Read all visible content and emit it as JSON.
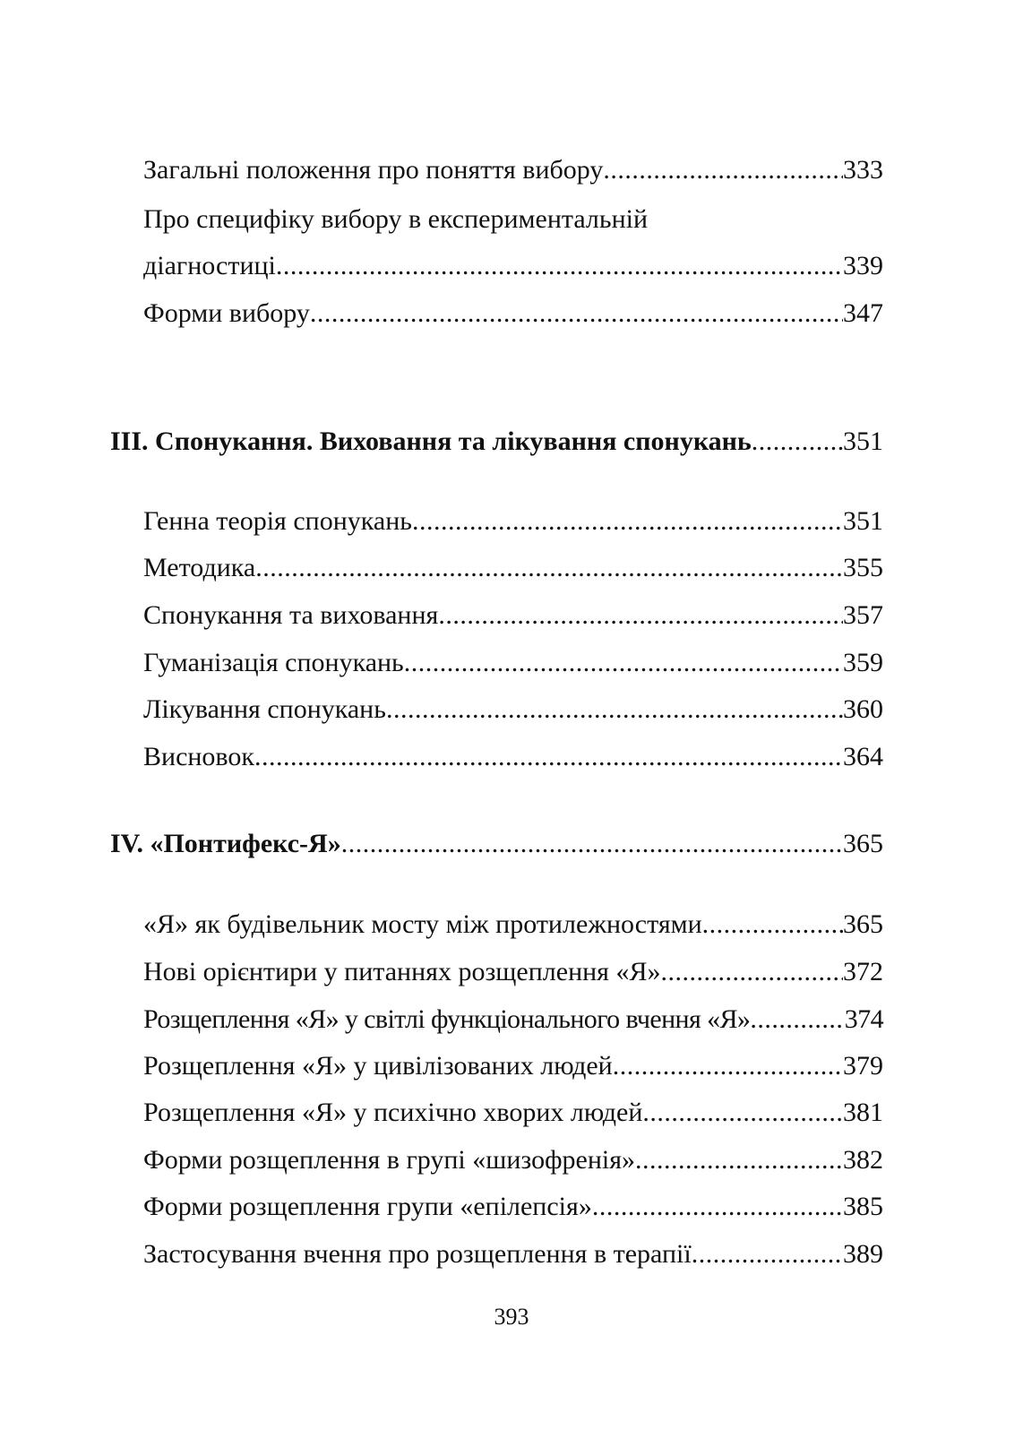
{
  "entries": [
    {
      "title": "Загальні положення про поняття вибору",
      "page": "333"
    },
    {
      "title": "Про специфіку вибору в експериментальній"
    },
    {
      "title": "діагностиці",
      "page": "339"
    },
    {
      "title": "Форми вибору",
      "page": "347"
    },
    {
      "title": "ІІІ. Спонукання. Виховання та лікування спонукань",
      "page": "351"
    },
    {
      "title": "Генна теорія спонукань",
      "page": "351"
    },
    {
      "title": "Методика",
      "page": "355"
    },
    {
      "title": "Спонукання та виховання",
      "page": "357"
    },
    {
      "title": "Гуманізація спонукань",
      "page": "359"
    },
    {
      "title": "Лікування спонукань",
      "page": "360"
    },
    {
      "title": "Висновок",
      "page": "364"
    },
    {
      "title": "IV. «Понтифекс-Я»",
      "page": "365"
    },
    {
      "title": "«Я» як будівельник мосту між протилежностями",
      "page": "365"
    },
    {
      "title": "Нові орієнтири у питаннях розщеплення «Я»",
      "page": "372"
    },
    {
      "title": "Розщеплення «Я» у світлі функціонального вчення «Я»",
      "page": "374"
    },
    {
      "title": "Розщеплення «Я» у цивілізованих людей",
      "page": "379"
    },
    {
      "title": "Розщеплення «Я» у психічно хворих людей",
      "page": "381"
    },
    {
      "title": "Форми розщеплення в групі «шизофренія»",
      "page": "382"
    },
    {
      "title": "Форми розщеплення групи «епілепсія»",
      "page": "385"
    },
    {
      "title": "Застосування вчення про розщеплення в терапії",
      "page": "389"
    }
  ],
  "page_number": "393"
}
